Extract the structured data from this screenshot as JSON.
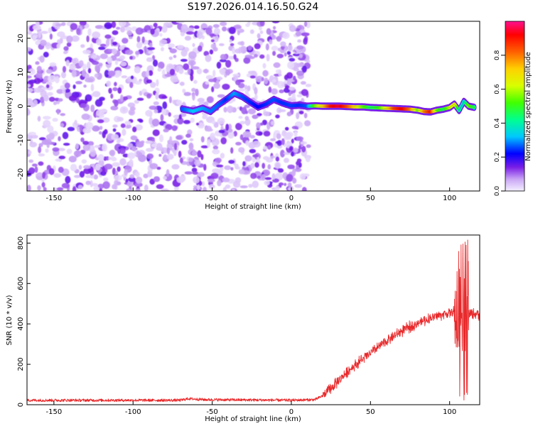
{
  "title": "S197.2026.014.16.50.G24",
  "colors": {
    "series_line": "#e8282a",
    "blob_light": "#d9c4f7",
    "blob_mid": "#b37aee",
    "blob_dark": "#7a1ee6",
    "axis": "#000000",
    "background": "#ffffff"
  },
  "chart_data": [
    {
      "type": "heatmap",
      "name": "spectrogram",
      "xlabel": "Height of straight line (km)",
      "ylabel": "Frequency (Hz)",
      "xlim": [
        -167,
        119
      ],
      "ylim": [
        -25,
        25
      ],
      "x_ticks": [
        -150,
        -100,
        -50,
        0,
        50,
        100
      ],
      "x_tick_labels": [
        "-150",
        "-100",
        "-50",
        "0",
        "50",
        "100"
      ],
      "y_ticks": [
        -20,
        -10,
        0,
        10,
        20
      ],
      "y_tick_labels": [
        "-20",
        "-10",
        "0",
        "10",
        "20"
      ],
      "colorbar": {
        "label": "Normalized spectral amplitude",
        "range": [
          0,
          1
        ],
        "ticks": [
          0.0,
          0.2,
          0.4,
          0.6,
          0.8
        ],
        "tick_labels": [
          "0.0",
          "0.2",
          "0.4",
          "0.6",
          "0.8"
        ],
        "stops": [
          {
            "v": 0.0,
            "color": "#f4efff"
          },
          {
            "v": 0.07,
            "color": "#c9a5f5"
          },
          {
            "v": 0.14,
            "color": "#7a1ee6"
          },
          {
            "v": 0.22,
            "color": "#0000ff"
          },
          {
            "v": 0.32,
            "color": "#00c8ff"
          },
          {
            "v": 0.42,
            "color": "#00ff90"
          },
          {
            "v": 0.52,
            "color": "#40ff00"
          },
          {
            "v": 0.62,
            "color": "#d8ff00"
          },
          {
            "v": 0.72,
            "color": "#ffd000"
          },
          {
            "v": 0.82,
            "color": "#ff6000"
          },
          {
            "v": 0.92,
            "color": "#ff0000"
          },
          {
            "v": 1.0,
            "color": "#ff1090"
          }
        ]
      },
      "noise_region": {
        "x": [
          -167,
          11
        ],
        "amplitude": [
          0.02,
          0.16
        ]
      },
      "signal_track": [
        {
          "x": -69,
          "f": -0.8,
          "amp": 0.26
        },
        {
          "x": -62,
          "f": -1.5,
          "amp": 0.32
        },
        {
          "x": -56,
          "f": -0.6,
          "amp": 0.3
        },
        {
          "x": -51,
          "f": -1.6,
          "amp": 0.28
        },
        {
          "x": -46,
          "f": 0.4,
          "amp": 0.27
        },
        {
          "x": -41,
          "f": 2.0,
          "amp": 0.24
        },
        {
          "x": -36,
          "f": 3.8,
          "amp": 0.3
        },
        {
          "x": -31,
          "f": 2.8,
          "amp": 0.26
        },
        {
          "x": -26,
          "f": 1.2,
          "amp": 0.24
        },
        {
          "x": -21,
          "f": -0.3,
          "amp": 0.22
        },
        {
          "x": -16,
          "f": 0.6,
          "amp": 0.24
        },
        {
          "x": -11,
          "f": 2.0,
          "amp": 0.26
        },
        {
          "x": -6,
          "f": 1.0,
          "amp": 0.24
        },
        {
          "x": 0,
          "f": 0.1,
          "amp": 0.25
        },
        {
          "x": 5,
          "f": 0.3,
          "amp": 0.24
        },
        {
          "x": 10,
          "f": 0.0,
          "amp": 0.26
        },
        {
          "x": 15,
          "f": 0.1,
          "amp": 0.55
        },
        {
          "x": 20,
          "f": 0.0,
          "amp": 0.7
        },
        {
          "x": 25,
          "f": 0.0,
          "amp": 0.9
        },
        {
          "x": 30,
          "f": 0.0,
          "amp": 0.95
        },
        {
          "x": 35,
          "f": -0.1,
          "amp": 0.85
        },
        {
          "x": 40,
          "f": -0.2,
          "amp": 0.7
        },
        {
          "x": 45,
          "f": -0.2,
          "amp": 0.55
        },
        {
          "x": 50,
          "f": -0.4,
          "amp": 0.45
        },
        {
          "x": 55,
          "f": -0.5,
          "amp": 0.5
        },
        {
          "x": 60,
          "f": -0.6,
          "amp": 0.65
        },
        {
          "x": 65,
          "f": -0.7,
          "amp": 0.85
        },
        {
          "x": 70,
          "f": -0.8,
          "amp": 0.93
        },
        {
          "x": 75,
          "f": -0.9,
          "amp": 0.8
        },
        {
          "x": 80,
          "f": -1.2,
          "amp": 0.55
        },
        {
          "x": 84,
          "f": -1.6,
          "amp": 0.78
        },
        {
          "x": 88,
          "f": -1.7,
          "amp": 0.9
        },
        {
          "x": 92,
          "f": -1.2,
          "amp": 0.55
        },
        {
          "x": 96,
          "f": -0.9,
          "amp": 0.45
        },
        {
          "x": 100,
          "f": -0.4,
          "amp": 0.6
        },
        {
          "x": 103,
          "f": 0.6,
          "amp": 0.68
        },
        {
          "x": 106,
          "f": -1.3,
          "amp": 0.4
        },
        {
          "x": 109,
          "f": 1.4,
          "amp": 0.35
        },
        {
          "x": 112,
          "f": 0.0,
          "amp": 0.55
        },
        {
          "x": 116,
          "f": -0.4,
          "amp": 0.45
        }
      ]
    },
    {
      "type": "line",
      "name": "snr",
      "xlabel": "Height of straight line (km)",
      "ylabel": "SNR (10 * v/v)",
      "xlim": [
        -167,
        119
      ],
      "ylim": [
        0,
        840
      ],
      "x_ticks": [
        -150,
        -100,
        -50,
        0,
        50,
        100
      ],
      "x_tick_labels": [
        "-150",
        "-100",
        "-50",
        "0",
        "50",
        "100"
      ],
      "y_ticks": [
        0,
        200,
        400,
        600,
        800
      ],
      "y_tick_labels": [
        "0",
        "200",
        "400",
        "600",
        "800"
      ],
      "series": [
        {
          "name": "SNR",
          "color": "#e8282a",
          "profile": [
            {
              "x": -167,
              "y": 22
            },
            {
              "x": -100,
              "y": 22
            },
            {
              "x": -70,
              "y": 22
            },
            {
              "x": -65,
              "y": 30
            },
            {
              "x": -55,
              "y": 25
            },
            {
              "x": 0,
              "y": 22
            },
            {
              "x": 15,
              "y": 25
            },
            {
              "x": 20,
              "y": 45
            },
            {
              "x": 25,
              "y": 80
            },
            {
              "x": 30,
              "y": 120
            },
            {
              "x": 35,
              "y": 160
            },
            {
              "x": 40,
              "y": 195
            },
            {
              "x": 45,
              "y": 225
            },
            {
              "x": 50,
              "y": 255
            },
            {
              "x": 55,
              "y": 285
            },
            {
              "x": 60,
              "y": 315
            },
            {
              "x": 65,
              "y": 340
            },
            {
              "x": 70,
              "y": 365
            },
            {
              "x": 75,
              "y": 385
            },
            {
              "x": 80,
              "y": 405
            },
            {
              "x": 85,
              "y": 420
            },
            {
              "x": 90,
              "y": 435
            },
            {
              "x": 95,
              "y": 445
            },
            {
              "x": 100,
              "y": 455
            },
            {
              "x": 104,
              "y": 460
            },
            {
              "x": 109,
              "y": 440
            },
            {
              "x": 113,
              "y": 450
            },
            {
              "x": 119,
              "y": 448
            }
          ],
          "noise_amplitude": {
            "baseline": 7,
            "rising": 22,
            "chaotic": 260
          },
          "chaotic_range": [
            103,
            112
          ],
          "spike_max": 830
        }
      ]
    }
  ]
}
